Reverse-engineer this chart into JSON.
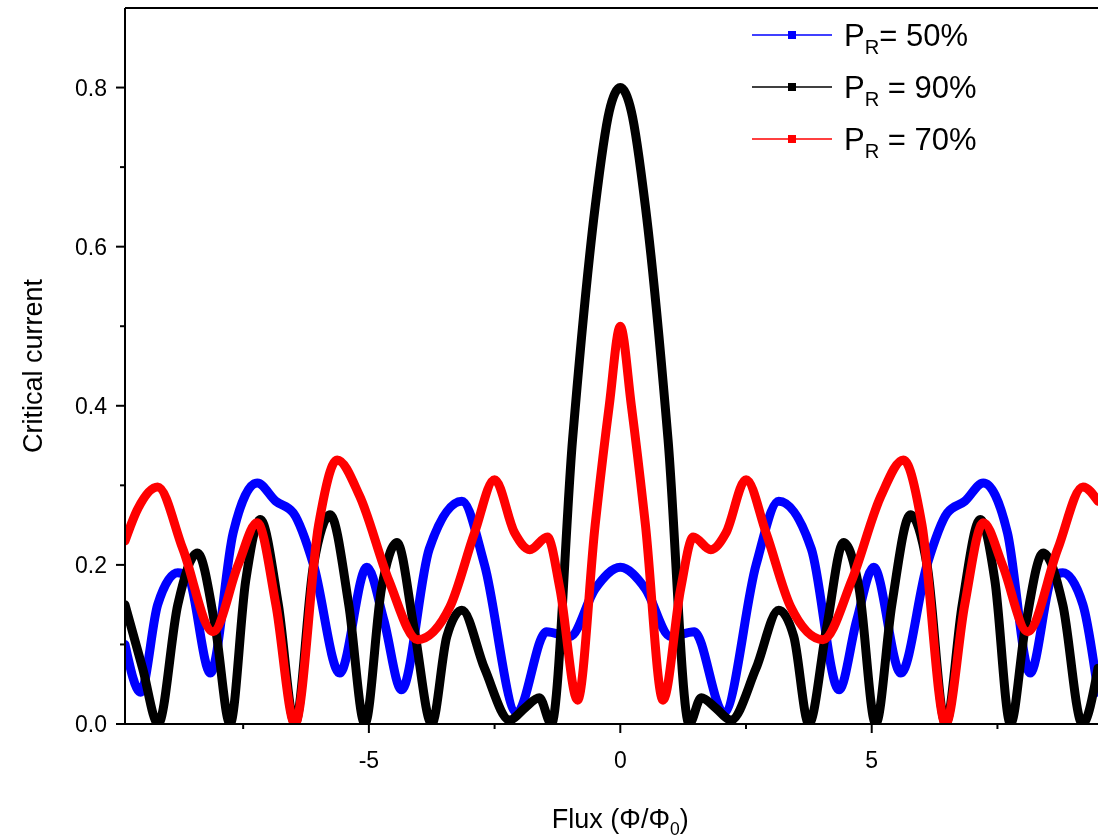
{
  "chart_data": {
    "type": "line",
    "xlabel": "Flux (Φ/Φ$_{0}$)",
    "ylabel": "Critical current",
    "xlim": [
      -9.85,
      9.5
    ],
    "ylim": [
      0,
      0.9
    ],
    "xticks": [
      {
        "value": -7.5,
        "label": null
      },
      {
        "value": -5,
        "label": "-5"
      },
      {
        "value": -2.5,
        "label": null
      },
      {
        "value": 0,
        "label": "0"
      },
      {
        "value": 2.5,
        "label": null
      },
      {
        "value": 5,
        "label": "5"
      },
      {
        "value": 7.5,
        "label": null
      }
    ],
    "yticks": [
      {
        "value": 0,
        "label": "0.0"
      },
      {
        "value": 0.1,
        "label": null
      },
      {
        "value": 0.2,
        "label": "0.2"
      },
      {
        "value": 0.3,
        "label": null
      },
      {
        "value": 0.4,
        "label": "0.4"
      },
      {
        "value": 0.5,
        "label": null
      },
      {
        "value": 0.6,
        "label": "0.6"
      },
      {
        "value": 0.7,
        "label": null
      },
      {
        "value": 0.8,
        "label": "0.8"
      }
    ],
    "grid": false,
    "legend": "top right",
    "series": [
      {
        "name": "P$_{R}$= 50%",
        "color": "#0000ff",
        "x": [
          -9.85,
          -9.54,
          -9.2,
          -8.8,
          -8.6,
          -8.15,
          -7.7,
          -7.22,
          -6.85,
          -6.5,
          -6.1,
          -5.58,
          -5.04,
          -4.7,
          -4.35,
          -3.8,
          -3.15,
          -2.7,
          -2.06,
          -1.47,
          -1.0,
          -0.5,
          0,
          0.5,
          1.0,
          1.47,
          2.06,
          2.7,
          3.15,
          3.8,
          4.35,
          4.7,
          5.04,
          5.58,
          6.1,
          6.5,
          6.85,
          7.22,
          7.7,
          8.15,
          8.6,
          8.8,
          9.2,
          9.5
        ],
        "values": [
          0.1,
          0.04,
          0.15,
          0.19,
          0.185,
          0.064,
          0.24,
          0.303,
          0.28,
          0.265,
          0.2,
          0.064,
          0.197,
          0.13,
          0.043,
          0.22,
          0.28,
          0.2,
          0.014,
          0.116,
          0.11,
          0.17,
          0.197,
          0.17,
          0.11,
          0.116,
          0.014,
          0.2,
          0.28,
          0.22,
          0.043,
          0.13,
          0.197,
          0.064,
          0.2,
          0.265,
          0.28,
          0.303,
          0.24,
          0.064,
          0.185,
          0.19,
          0.15,
          0.04
        ]
      },
      {
        "name": "P$_{R}$ = 90%",
        "color": "#000000",
        "x": [
          -9.85,
          -9.5,
          -9.19,
          -8.8,
          -8.41,
          -8.05,
          -7.76,
          -7.45,
          -7.16,
          -6.8,
          -6.47,
          -6.1,
          -5.77,
          -5.4,
          -5.08,
          -4.75,
          -4.44,
          -4.1,
          -3.75,
          -3.45,
          -3.15,
          -2.7,
          -2.2,
          -1.9,
          -1.61,
          -1.37,
          -0.95,
          -0.5,
          -0.22,
          0,
          0.22,
          0.5,
          0.95,
          1.37,
          1.61,
          1.9,
          2.2,
          2.7,
          3.15,
          3.45,
          3.75,
          4.1,
          4.44,
          4.75,
          5.08,
          5.4,
          5.77,
          6.1,
          6.47,
          6.8,
          7.16,
          7.45,
          7.76,
          8.05,
          8.41,
          8.8,
          9.19,
          9.5
        ],
        "values": [
          0.15,
          0.07,
          0,
          0.15,
          0.215,
          0.12,
          0,
          0.18,
          0.257,
          0.15,
          0,
          0.2,
          0.263,
          0.15,
          0,
          0.17,
          0.228,
          0.12,
          0,
          0.11,
          0.143,
          0.07,
          0.005,
          0.02,
          0.033,
          0,
          0.357,
          0.65,
          0.77,
          0.8,
          0.77,
          0.65,
          0.357,
          0,
          0.033,
          0.02,
          0.005,
          0.07,
          0.143,
          0.11,
          0,
          0.12,
          0.228,
          0.17,
          0,
          0.15,
          0.263,
          0.2,
          0,
          0.15,
          0.257,
          0.18,
          0,
          0.12,
          0.215,
          0.15,
          0,
          0.07
        ]
      },
      {
        "name": "P$_{R}$ = 70%",
        "color": "#ff0000",
        "x": [
          -9.85,
          -9.6,
          -9.2,
          -8.7,
          -8.1,
          -7.6,
          -7.22,
          -6.85,
          -6.47,
          -6.0,
          -5.63,
          -5.18,
          -4.6,
          -4.03,
          -3.39,
          -2.9,
          -2.5,
          -2.1,
          -1.8,
          -1.45,
          -1.2,
          -0.85,
          -0.5,
          -0.22,
          0,
          0.22,
          0.5,
          0.85,
          1.2,
          1.45,
          1.8,
          2.1,
          2.5,
          2.9,
          3.39,
          4.03,
          4.6,
          5.18,
          5.63,
          6.0,
          6.47,
          6.85,
          7.22,
          7.6,
          8.1,
          8.7,
          9.2,
          9.5
        ],
        "values": [
          0.23,
          0.27,
          0.298,
          0.22,
          0.116,
          0.2,
          0.253,
          0.15,
          0,
          0.25,
          0.332,
          0.286,
          0.18,
          0.106,
          0.147,
          0.24,
          0.307,
          0.24,
          0.219,
          0.235,
          0.17,
          0.03,
          0.25,
          0.4,
          0.5,
          0.4,
          0.25,
          0.03,
          0.17,
          0.235,
          0.219,
          0.24,
          0.307,
          0.24,
          0.147,
          0.106,
          0.18,
          0.286,
          0.332,
          0.25,
          0,
          0.15,
          0.253,
          0.2,
          0.116,
          0.22,
          0.298,
          0.28
        ]
      }
    ]
  }
}
